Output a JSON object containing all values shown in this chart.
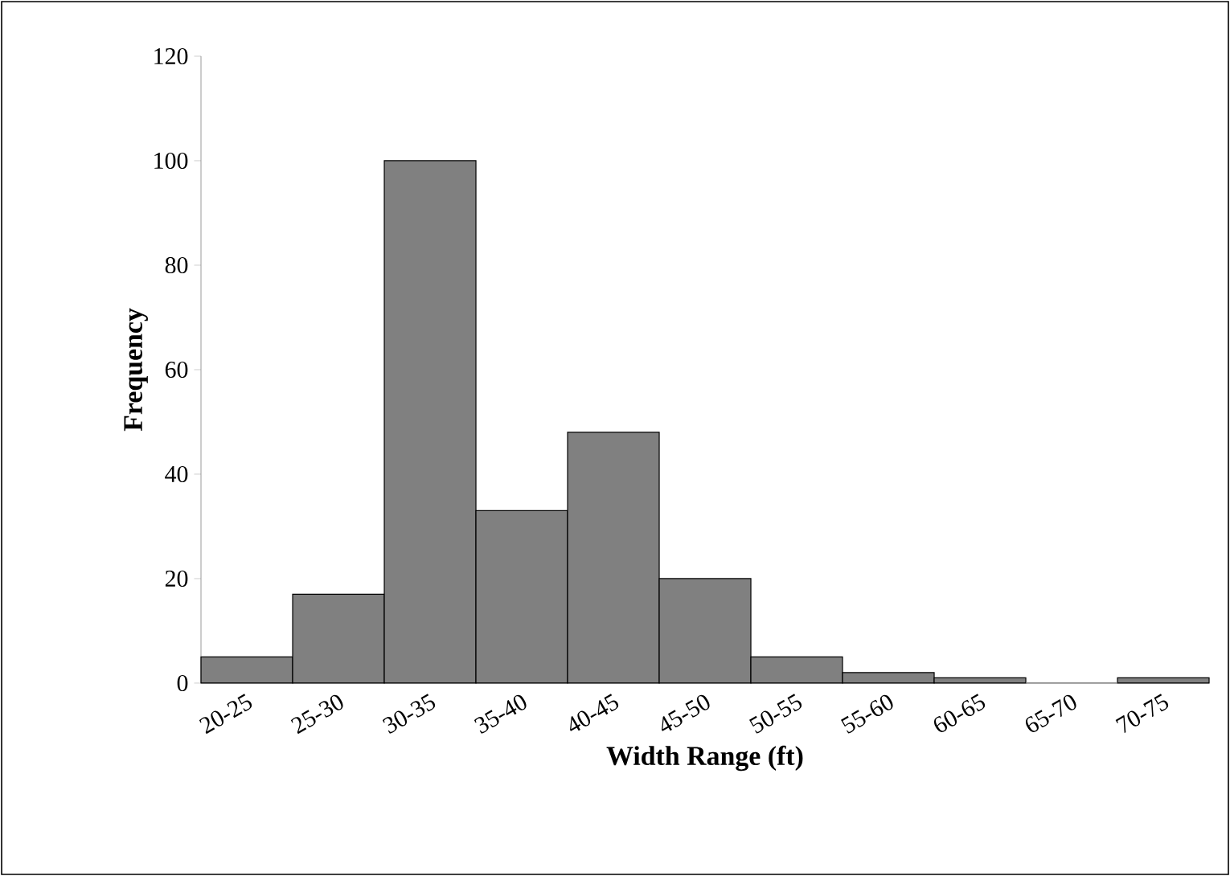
{
  "chart_data": {
    "type": "bar",
    "xlabel": "Width Range (ft)",
    "ylabel": "Frequency",
    "categories": [
      "20-25",
      "25-30",
      "30-35",
      "35-40",
      "40-45",
      "45-50",
      "50-55",
      "55-60",
      "60-65",
      "65-70",
      "70-75"
    ],
    "values": [
      5,
      17,
      100,
      33,
      48,
      20,
      5,
      2,
      1,
      0,
      1
    ],
    "color": "#808080",
    "ylim": [
      0,
      120
    ],
    "yticks": [
      0,
      20,
      40,
      60,
      80,
      100,
      120
    ],
    "grid": false
  }
}
